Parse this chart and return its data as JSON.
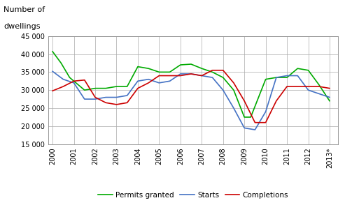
{
  "ylabel_line1": "Number of",
  "ylabel_line2": "dwellings",
  "ylim": [
    15000,
    45000
  ],
  "yticks": [
    15000,
    20000,
    25000,
    30000,
    35000,
    40000,
    45000
  ],
  "ytick_labels": [
    "15 000",
    "20 000",
    "25 000",
    "30 000",
    "35 000",
    "40 000",
    "45 000"
  ],
  "background_color": "#ffffff",
  "grid_color": "#aaaaaa",
  "permits_color": "#00aa00",
  "starts_color": "#4472c4",
  "completions_color": "#cc0000",
  "x_labels": [
    "2000",
    "2001",
    "2002",
    "2003",
    "2004",
    "2005",
    "2006",
    "2007",
    "2008",
    "2009",
    "2010",
    "2011",
    "2012",
    "2013*"
  ],
  "legend_labels": [
    "Permits granted",
    "Starts",
    "Completions"
  ],
  "permits_data": [
    [
      0.0,
      40700
    ],
    [
      0.4,
      37500
    ],
    [
      0.8,
      33500
    ],
    [
      1.0,
      32500
    ],
    [
      1.5,
      30000
    ],
    [
      2.0,
      30500
    ],
    [
      2.5,
      30500
    ],
    [
      3.0,
      31000
    ],
    [
      3.5,
      31000
    ],
    [
      4.0,
      36500
    ],
    [
      4.5,
      36000
    ],
    [
      5.0,
      35000
    ],
    [
      5.5,
      35000
    ],
    [
      6.0,
      37000
    ],
    [
      6.5,
      37200
    ],
    [
      7.0,
      36000
    ],
    [
      7.5,
      35000
    ],
    [
      8.0,
      33500
    ],
    [
      8.5,
      30000
    ],
    [
      9.0,
      22500
    ],
    [
      9.3,
      22500
    ],
    [
      10.0,
      33000
    ],
    [
      10.5,
      33500
    ],
    [
      11.0,
      33500
    ],
    [
      11.5,
      36000
    ],
    [
      12.0,
      35500
    ],
    [
      12.5,
      31500
    ],
    [
      13.0,
      27000
    ]
  ],
  "starts_data": [
    [
      0.0,
      35200
    ],
    [
      0.5,
      33000
    ],
    [
      1.0,
      32000
    ],
    [
      1.5,
      27500
    ],
    [
      2.0,
      27500
    ],
    [
      2.5,
      28000
    ],
    [
      3.0,
      28000
    ],
    [
      3.5,
      28500
    ],
    [
      4.0,
      32500
    ],
    [
      4.5,
      33000
    ],
    [
      5.0,
      32000
    ],
    [
      5.5,
      32500
    ],
    [
      6.0,
      34500
    ],
    [
      6.5,
      34500
    ],
    [
      7.0,
      34000
    ],
    [
      7.5,
      33500
    ],
    [
      8.0,
      30000
    ],
    [
      8.5,
      25000
    ],
    [
      9.0,
      19500
    ],
    [
      9.5,
      19000
    ],
    [
      10.0,
      24000
    ],
    [
      10.5,
      33500
    ],
    [
      11.0,
      34000
    ],
    [
      11.5,
      34000
    ],
    [
      12.0,
      30000
    ],
    [
      12.5,
      29000
    ],
    [
      13.0,
      28000
    ]
  ],
  "completions_data": [
    [
      0.0,
      29800
    ],
    [
      0.5,
      31000
    ],
    [
      1.0,
      32500
    ],
    [
      1.5,
      32800
    ],
    [
      2.0,
      28000
    ],
    [
      2.5,
      26500
    ],
    [
      3.0,
      26000
    ],
    [
      3.5,
      26500
    ],
    [
      4.0,
      30500
    ],
    [
      4.5,
      32000
    ],
    [
      5.0,
      34000
    ],
    [
      5.5,
      34000
    ],
    [
      6.0,
      34000
    ],
    [
      6.5,
      34500
    ],
    [
      7.0,
      34000
    ],
    [
      7.5,
      35500
    ],
    [
      8.0,
      35500
    ],
    [
      8.5,
      32000
    ],
    [
      9.0,
      27000
    ],
    [
      9.5,
      21000
    ],
    [
      10.0,
      21000
    ],
    [
      10.5,
      27000
    ],
    [
      11.0,
      31000
    ],
    [
      11.5,
      31000
    ],
    [
      12.0,
      31000
    ],
    [
      12.5,
      31000
    ],
    [
      13.0,
      30500
    ]
  ]
}
